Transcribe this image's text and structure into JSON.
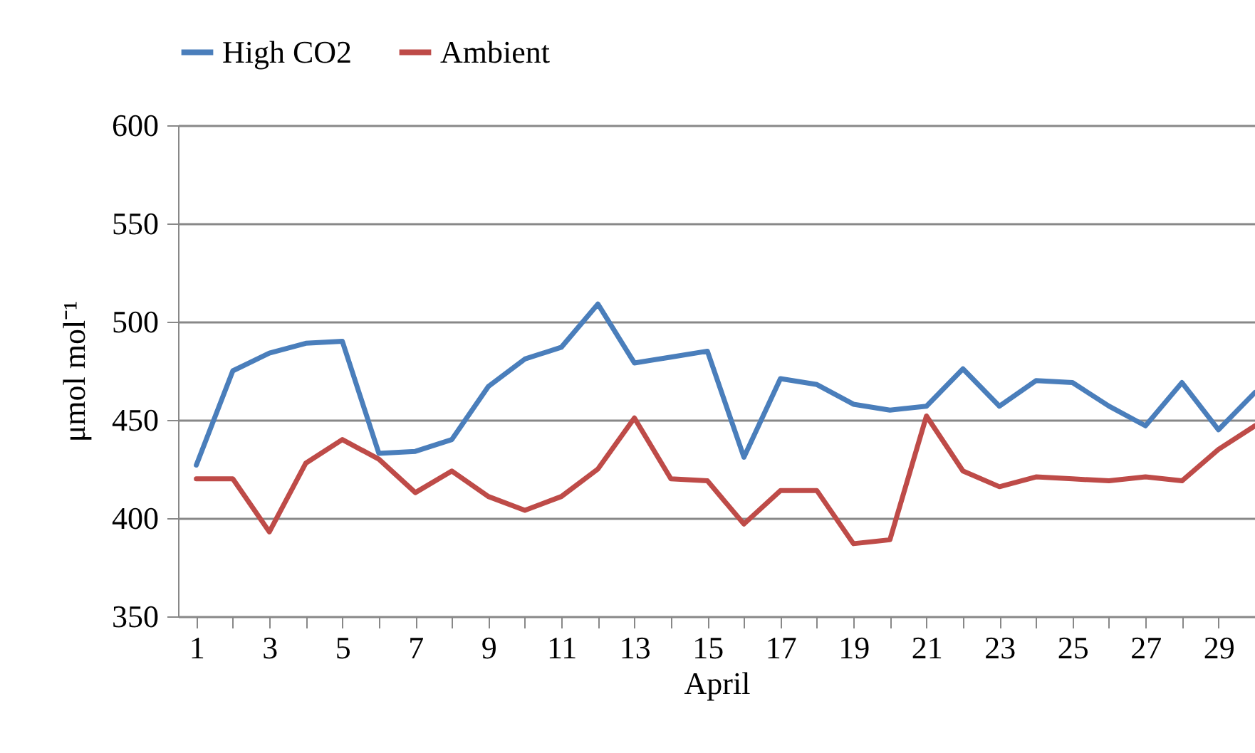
{
  "chart_data": {
    "type": "line",
    "xlabel": "April",
    "ylabel": "μmol mol⁻¹",
    "x": [
      1,
      2,
      3,
      4,
      5,
      6,
      7,
      8,
      9,
      10,
      11,
      12,
      13,
      14,
      15,
      16,
      17,
      18,
      19,
      20,
      21,
      22,
      23,
      24,
      25,
      26,
      27,
      28,
      29,
      30
    ],
    "series": [
      {
        "name": "High CO2",
        "color": "#4a7ebb",
        "values": [
          427,
          475,
          484,
          489,
          490,
          433,
          434,
          440,
          467,
          481,
          487,
          509,
          479,
          482,
          485,
          431,
          471,
          468,
          458,
          455,
          457,
          476,
          457,
          470,
          469,
          457,
          447,
          469,
          445,
          464
        ]
      },
      {
        "name": "Ambient",
        "color": "#be4b48",
        "values": [
          420,
          420,
          393,
          428,
          440,
          430,
          413,
          424,
          411,
          404,
          411,
          425,
          451,
          420,
          419,
          397,
          414,
          414,
          387,
          389,
          452,
          424,
          416,
          421,
          420,
          419,
          421,
          419,
          435,
          447
        ]
      }
    ],
    "xlim": [
      0.5,
      30
    ],
    "xticks": [
      1,
      {
        "value": 2,
        "label": null
      },
      3,
      {
        "value": 4,
        "label": null
      },
      5,
      {
        "value": 6,
        "label": null
      },
      7,
      {
        "value": 8,
        "label": null
      },
      9,
      {
        "value": 10,
        "label": null
      },
      11,
      {
        "value": 12,
        "label": null
      },
      13,
      {
        "value": 14,
        "label": null
      },
      15,
      {
        "value": 16,
        "label": null
      },
      17,
      {
        "value": 18,
        "label": null
      },
      19,
      {
        "value": 20,
        "label": null
      },
      21,
      {
        "value": 22,
        "label": null
      },
      23,
      {
        "value": 24,
        "label": null
      },
      25,
      {
        "value": 26,
        "label": null
      },
      27,
      {
        "value": 28,
        "label": null
      },
      29
    ],
    "ylim": [
      350,
      600
    ],
    "yticks": [
      350,
      400,
      450,
      500,
      550,
      600
    ],
    "grid": "y",
    "legend": "top",
    "marker": "none",
    "line_style": "solid"
  }
}
